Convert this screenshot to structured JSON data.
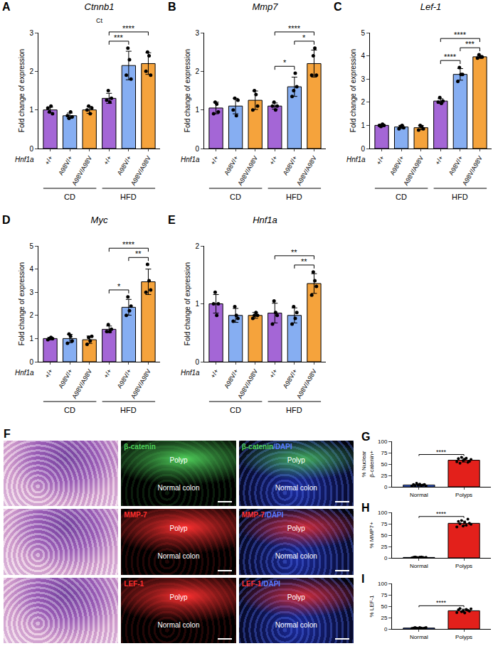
{
  "chart_data": [
    {
      "panel": "A",
      "type": "bar",
      "title": "Ctnnb1",
      "subtitle": "Ct",
      "y_label": "Fold change of expression",
      "genotype_label": "Hnf1a",
      "categories": [
        "+/+",
        "A98V/+",
        "A98V/A98V",
        "+/+",
        "A98V/+",
        "A98V/A98V"
      ],
      "groups": [
        "CD",
        "CD",
        "CD",
        "HFD",
        "HFD",
        "HFD"
      ],
      "values": [
        1.0,
        0.85,
        1.0,
        1.3,
        2.15,
        2.2
      ],
      "errors": [
        0.07,
        0.07,
        0.09,
        0.13,
        0.37,
        0.28
      ],
      "points": [
        [
          1.05,
          0.95,
          1.1,
          0.9
        ],
        [
          0.85,
          0.78,
          0.95,
          0.82
        ],
        [
          1.0,
          1.1,
          0.9,
          1.05
        ],
        [
          1.25,
          1.5,
          1.2,
          1.3
        ],
        [
          1.9,
          2.6,
          2.3,
          1.8
        ],
        [
          2.0,
          2.5,
          2.4,
          1.9
        ]
      ],
      "colors": [
        "#a466d6",
        "#86aef2",
        "#f5a33c",
        "#a466d6",
        "#86aef2",
        "#f5a33c"
      ],
      "marker": "circle",
      "grid": false,
      "ylim": [
        0,
        3
      ],
      "yticks": [
        0,
        1,
        2,
        3
      ],
      "comparisons": [
        {
          "from": 3,
          "to": 4,
          "label": "***"
        },
        {
          "from": 3,
          "to": 5,
          "label": "****"
        }
      ]
    },
    {
      "panel": "B",
      "type": "bar",
      "title": "Mmp7",
      "y_label": "Fold change of expression",
      "genotype_label": "Hnf1a",
      "categories": [
        "+/+",
        "A98V/+",
        "A98V/A98V",
        "+/+",
        "A98V/+",
        "A98V/A98V"
      ],
      "groups": [
        "CD",
        "CD",
        "CD",
        "HFD",
        "HFD",
        "HFD"
      ],
      "values": [
        1.05,
        1.1,
        1.25,
        1.1,
        1.6,
        2.2
      ],
      "errors": [
        0.15,
        0.2,
        0.24,
        0.08,
        0.25,
        0.35
      ],
      "points": [
        [
          0.9,
          1.2,
          1.15,
          0.95
        ],
        [
          1.0,
          1.3,
          0.85,
          1.25
        ],
        [
          1.0,
          1.5,
          1.4,
          1.1
        ],
        [
          1.1,
          1.2,
          1.0,
          1.1
        ],
        [
          1.35,
          1.5,
          1.95,
          1.6
        ],
        [
          1.9,
          2.4,
          2.6,
          1.9
        ]
      ],
      "colors": [
        "#a466d6",
        "#86aef2",
        "#f5a33c",
        "#a466d6",
        "#86aef2",
        "#f5a33c"
      ],
      "marker": "circle",
      "grid": false,
      "ylim": [
        0,
        3
      ],
      "yticks": [
        0,
        1,
        2,
        3
      ],
      "comparisons": [
        {
          "from": 3,
          "to": 4,
          "label": "*"
        },
        {
          "from": 4,
          "to": 5,
          "label": "*"
        },
        {
          "from": 3,
          "to": 5,
          "label": "****"
        }
      ]
    },
    {
      "panel": "C",
      "type": "bar",
      "title": "Lef-1",
      "y_label": "Fold change of expression",
      "genotype_label": "Hnf1a",
      "categories": [
        "+/+",
        "A98V/+",
        "A98V/A98V",
        "+/+",
        "A98V/+",
        "A98V/A98V"
      ],
      "groups": [
        "CD",
        "CD",
        "CD",
        "HFD",
        "HFD",
        "HFD"
      ],
      "values": [
        1.0,
        0.93,
        0.9,
        2.05,
        3.2,
        3.96
      ],
      "errors": [
        0.05,
        0.07,
        0.09,
        0.1,
        0.25,
        0.06
      ],
      "points": [
        [
          1.0,
          0.95,
          1.05,
          1.0
        ],
        [
          0.85,
          0.95,
          1.0,
          0.9
        ],
        [
          0.8,
          1.0,
          0.95,
          0.85
        ],
        [
          2.0,
          2.2,
          1.95,
          2.05
        ],
        [
          2.9,
          3.5,
          3.2,
          3.2
        ],
        [
          3.9,
          4.05,
          3.95,
          3.95
        ]
      ],
      "colors": [
        "#a466d6",
        "#86aef2",
        "#f5a33c",
        "#a466d6",
        "#86aef2",
        "#f5a33c"
      ],
      "marker": "circle",
      "grid": false,
      "ylim": [
        0,
        5
      ],
      "yticks": [
        0,
        1,
        2,
        3,
        4,
        5
      ],
      "comparisons": [
        {
          "from": 3,
          "to": 4,
          "label": "****"
        },
        {
          "from": 4,
          "to": 5,
          "label": "***"
        },
        {
          "from": 3,
          "to": 5,
          "label": "****"
        }
      ]
    },
    {
      "panel": "D",
      "type": "bar",
      "title": "Myc",
      "y_label": "Fold change of expression",
      "genotype_label": "Hnf1a",
      "categories": [
        "+/+",
        "A98V/+",
        "A98V/A98V",
        "+/+",
        "A98V/+",
        "A98V/A98V"
      ],
      "groups": [
        "CD",
        "CD",
        "CD",
        "HFD",
        "HFD",
        "HFD"
      ],
      "values": [
        1.0,
        1.0,
        0.95,
        1.4,
        2.35,
        3.45
      ],
      "errors": [
        0.05,
        0.18,
        0.16,
        0.14,
        0.34,
        0.55
      ],
      "points": [
        [
          0.95,
          1.0,
          1.05,
          1.0
        ],
        [
          0.8,
          1.2,
          1.1,
          0.9
        ],
        [
          0.75,
          1.05,
          0.9,
          1.1
        ],
        [
          1.3,
          1.6,
          1.3,
          1.4
        ],
        [
          2.0,
          2.8,
          2.2,
          2.4
        ],
        [
          3.0,
          4.2,
          3.5,
          3.1
        ]
      ],
      "colors": [
        "#a466d6",
        "#86aef2",
        "#f5a33c",
        "#a466d6",
        "#86aef2",
        "#f5a33c"
      ],
      "marker": "circle",
      "grid": false,
      "ylim": [
        0,
        5
      ],
      "yticks": [
        0,
        1,
        2,
        3,
        4,
        5
      ],
      "comparisons": [
        {
          "from": 3,
          "to": 4,
          "label": "*"
        },
        {
          "from": 4,
          "to": 5,
          "label": "**"
        },
        {
          "from": 3,
          "to": 5,
          "label": "****"
        }
      ]
    },
    {
      "panel": "E",
      "type": "bar",
      "title": "Hnf1a",
      "y_label": "Fold change of expression",
      "genotype_label": "Hnf1a",
      "categories": [
        "+/+",
        "A98V/+",
        "A98V/A98V",
        "+/+",
        "A98V/+",
        "A98V/A98V"
      ],
      "groups": [
        "CD",
        "CD",
        "CD",
        "HFD",
        "HFD",
        "HFD"
      ],
      "values": [
        1.0,
        0.8,
        0.8,
        0.84,
        0.8,
        1.35
      ],
      "errors": [
        0.16,
        0.12,
        0.05,
        0.17,
        0.13,
        0.17
      ],
      "points": [
        [
          1.0,
          1.2,
          0.8,
          1.0
        ],
        [
          0.7,
          0.95,
          0.8,
          0.75
        ],
        [
          0.75,
          0.8,
          0.85,
          0.8
        ],
        [
          0.65,
          1.05,
          0.85,
          0.8
        ],
        [
          0.65,
          0.95,
          0.75,
          0.85
        ],
        [
          1.15,
          1.55,
          1.4,
          1.3
        ]
      ],
      "colors": [
        "#a466d6",
        "#86aef2",
        "#f5a33c",
        "#a466d6",
        "#86aef2",
        "#f5a33c"
      ],
      "marker": "circle",
      "grid": false,
      "ylim": [
        0,
        2
      ],
      "yticks": [
        0,
        1,
        2
      ],
      "comparisons": [
        {
          "from": 4,
          "to": 5,
          "label": "**"
        },
        {
          "from": 3,
          "to": 5,
          "label": "**"
        }
      ]
    },
    {
      "panel": "G",
      "type": "bar",
      "y_label": "% Nuclear β-catenin+",
      "categories": [
        "Normal",
        "Polyps"
      ],
      "values": [
        4,
        58.5
      ],
      "errors": [
        2,
        4
      ],
      "points": [
        [
          2,
          5,
          3,
          8,
          4,
          6,
          3,
          4,
          5,
          2
        ],
        [
          55,
          62,
          52,
          65,
          58,
          60,
          63,
          54,
          56,
          60
        ]
      ],
      "colors": [
        "#4169e1",
        "#e3201b"
      ],
      "marker": "circle",
      "grid": false,
      "ylim": [
        0,
        100
      ],
      "yticks": [
        0,
        25,
        50,
        75,
        100
      ],
      "comparisons": [
        {
          "from": 0,
          "to": 1,
          "label": "****"
        }
      ]
    },
    {
      "panel": "H",
      "type": "bar",
      "y_label": "% MMP7+",
      "categories": [
        "Normal",
        "Polyps"
      ],
      "values": [
        1,
        76
      ],
      "errors": [
        0.7,
        5
      ],
      "points": [
        [
          0,
          1,
          2,
          1,
          0.5,
          1.5,
          2,
          1,
          0,
          1
        ],
        [
          68,
          80,
          75,
          82,
          70,
          78,
          72,
          85,
          76,
          74
        ]
      ],
      "colors": [
        "#4169e1",
        "#e3201b"
      ],
      "marker": "circle",
      "grid": false,
      "ylim": [
        0,
        100
      ],
      "yticks": [
        0,
        25,
        50,
        75,
        100
      ],
      "comparisons": [
        {
          "from": 0,
          "to": 1,
          "label": "****"
        }
      ]
    },
    {
      "panel": "I",
      "type": "bar",
      "y_label": "% LEF-1",
      "categories": [
        "Normal",
        "Polyps"
      ],
      "values": [
        2,
        40
      ],
      "errors": [
        0.8,
        3.5
      ],
      "points": [
        [
          1,
          2,
          3,
          2,
          1,
          3,
          2,
          1,
          2,
          3
        ],
        [
          36,
          42,
          45,
          38,
          40,
          35,
          43,
          41,
          39,
          44
        ]
      ],
      "colors": [
        "#4169e1",
        "#e3201b"
      ],
      "marker": "circle",
      "grid": false,
      "ylim": [
        0,
        100
      ],
      "yticks": [
        0,
        25,
        50,
        75,
        100
      ],
      "comparisons": [
        {
          "from": 0,
          "to": 1,
          "label": "****"
        }
      ]
    }
  ],
  "panel_F": {
    "panel": "F",
    "rows": [
      {
        "stain_label": "β-catenin",
        "merge_label": "β-catenin/DAPI",
        "stain_color": "#4fd05a"
      },
      {
        "stain_label": "MMP-7",
        "merge_label": "MMP-7/DAPI",
        "stain_color": "#ff3030"
      },
      {
        "stain_label": "LEF-1",
        "merge_label": "LEF-1/DAPI",
        "stain_color": "#ff3030"
      }
    ],
    "region_labels": [
      "Polyp",
      "Normal colon"
    ],
    "dapi_color": "#5b7cff"
  }
}
